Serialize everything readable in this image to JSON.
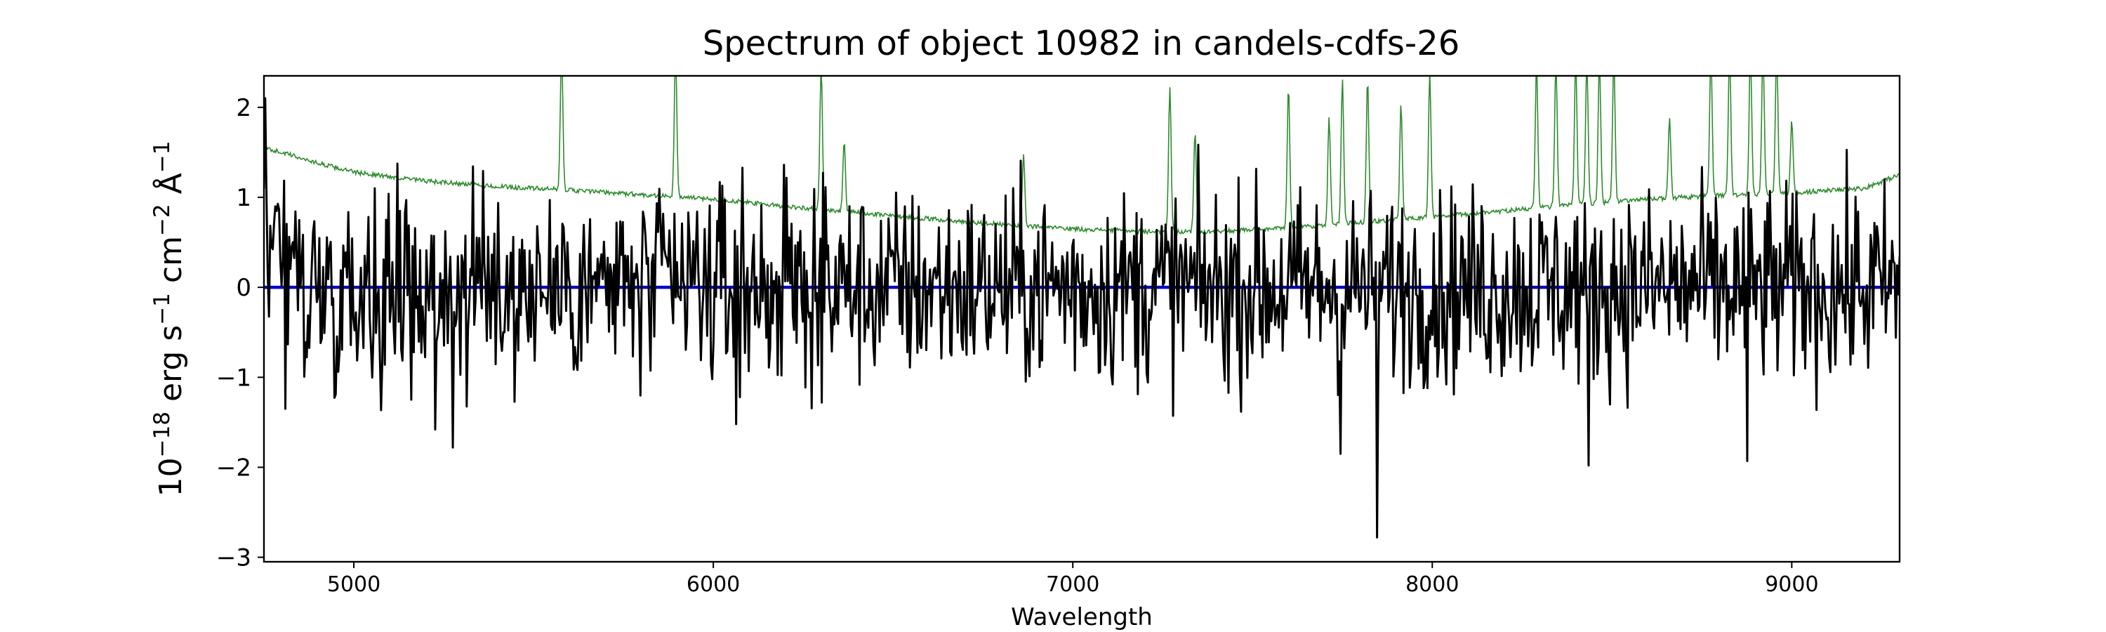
{
  "chart_data": {
    "type": "line",
    "title": "Spectrum of object 10982 in candels-cdfs-26",
    "xlabel": "Wavelength",
    "ylabel_base": "10",
    "ylabel_exp": "−18",
    "ylabel_unit_1": " erg s",
    "ylabel_exp_2": "−1",
    "ylabel_unit_2": " cm",
    "ylabel_exp_3": "−2",
    "ylabel_unit_3": " Å",
    "ylabel_exp_4": "−1",
    "xlim": [
      4750,
      9300
    ],
    "ylim": [
      -3.05,
      2.35
    ],
    "xticks": [
      5000,
      6000,
      7000,
      8000,
      9000
    ],
    "xtick_labels": [
      "5000",
      "6000",
      "7000",
      "8000",
      "9000"
    ],
    "yticks": [
      -3,
      -2,
      -1,
      0,
      1,
      2
    ],
    "ytick_labels": [
      "−3",
      "−2",
      "−1",
      "0",
      "1",
      "2"
    ],
    "grid": false,
    "series": [
      {
        "role": "flux",
        "color": "#000000",
        "x_range": [
          4750,
          9300
        ],
        "n_points": 1300,
        "minimum": {
          "x": 7845,
          "y": -2.78
        },
        "maximum": {
          "x": 4755,
          "y": 2.1
        },
        "notable_dips": [
          {
            "x": 5275,
            "y": -1.78
          },
          {
            "x": 5225,
            "y": -1.58
          },
          {
            "x": 6065,
            "y": -1.52
          },
          {
            "x": 7745,
            "y": -1.85
          },
          {
            "x": 8435,
            "y": -1.98
          },
          {
            "x": 8875,
            "y": -1.93
          },
          {
            "x": 4810,
            "y": -1.35
          }
        ]
      },
      {
        "role": "zero-level",
        "color": "#0000cc",
        "x": [
          4750,
          9300
        ],
        "values": [
          0.0,
          0.0
        ]
      },
      {
        "role": "noise",
        "color": "#2e8b2e",
        "x": [
          4750,
          4800,
          4900,
          5000,
          5200,
          5400,
          5600,
          5800,
          6000,
          6200,
          6400,
          6600,
          6800,
          7000,
          7200,
          7400,
          7600,
          7800,
          8000,
          8200,
          8400,
          8600,
          8800,
          9000,
          9200,
          9300
        ],
        "values": [
          1.55,
          1.5,
          1.38,
          1.28,
          1.18,
          1.12,
          1.08,
          1.03,
          0.98,
          0.9,
          0.83,
          0.76,
          0.7,
          0.65,
          0.62,
          0.62,
          0.66,
          0.72,
          0.78,
          0.85,
          0.92,
          0.98,
          1.02,
          1.05,
          1.1,
          1.25
        ],
        "emission_spikes": [
          {
            "x": 5578,
            "peak": 2.4
          },
          {
            "x": 5895,
            "peak": 2.4
          },
          {
            "x": 6300,
            "peak": 2.4
          },
          {
            "x": 6364,
            "peak": 1.6
          },
          {
            "x": 6863,
            "peak": 1.6
          },
          {
            "x": 7270,
            "peak": 2.4
          },
          {
            "x": 7340,
            "peak": 1.9
          },
          {
            "x": 7600,
            "peak": 2.4
          },
          {
            "x": 7713,
            "peak": 2.0
          },
          {
            "x": 7750,
            "peak": 2.4
          },
          {
            "x": 7820,
            "peak": 2.4
          },
          {
            "x": 7913,
            "peak": 2.1
          },
          {
            "x": 7993,
            "peak": 2.4
          },
          {
            "x": 8290,
            "peak": 2.4
          },
          {
            "x": 8344,
            "peak": 2.4
          },
          {
            "x": 8399,
            "peak": 2.4
          },
          {
            "x": 8430,
            "peak": 2.4
          },
          {
            "x": 8465,
            "peak": 2.4
          },
          {
            "x": 8505,
            "peak": 2.4
          },
          {
            "x": 8660,
            "peak": 1.7
          },
          {
            "x": 8775,
            "peak": 2.4
          },
          {
            "x": 8827,
            "peak": 2.4
          },
          {
            "x": 8885,
            "peak": 2.4
          },
          {
            "x": 8920,
            "peak": 2.4
          },
          {
            "x": 8958,
            "peak": 2.4
          },
          {
            "x": 9000,
            "peak": 1.6
          }
        ]
      }
    ]
  }
}
